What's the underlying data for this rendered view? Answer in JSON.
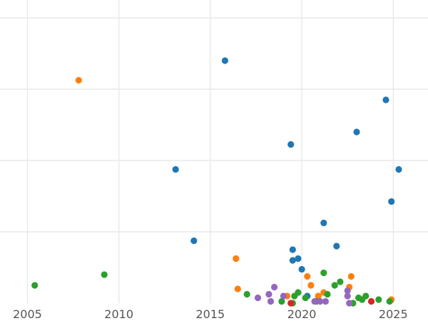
{
  "chart_data": {
    "type": "scatter",
    "title": "",
    "xlabel": "",
    "ylabel": "",
    "xlim": [
      2003.5,
      2026.9
    ],
    "ylim": [
      0,
      8.5
    ],
    "grid": true,
    "x_ticks": [
      2005,
      2010,
      2015,
      2020,
      2025
    ],
    "y_gridlines": [
      2,
      4,
      6,
      8
    ],
    "series": [
      {
        "name": "blue",
        "color": "#1f77b4",
        "x": [
          2015.8,
          2024.6,
          2023.0,
          2019.4,
          2013.1,
          2025.3,
          2024.9,
          2021.2,
          2014.1,
          2021.9,
          2019.5,
          2019.5,
          2019.8,
          2020.0,
          2020.3
        ],
        "y": [
          6.8,
          5.7,
          4.8,
          4.45,
          3.75,
          3.75,
          2.85,
          2.25,
          1.75,
          1.6,
          1.5,
          1.2,
          1.25,
          0.95,
          0.2
        ]
      },
      {
        "name": "orange",
        "color": "#ff7f0e",
        "x": [
          2007.8,
          2016.4,
          2016.5,
          2020.3,
          2020.5,
          2022.7,
          2022.6,
          2020.9,
          2021.2,
          2019.2,
          2024.9
        ],
        "y": [
          6.25,
          1.25,
          0.4,
          0.75,
          0.5,
          0.75,
          0.45,
          0.2,
          0.3,
          0.2,
          0.1
        ]
      },
      {
        "name": "green",
        "color": "#2ca02c",
        "x": [
          2005.4,
          2009.2,
          2017.0,
          2021.2,
          2021.8,
          2022.1,
          2019.8,
          2020.2,
          2021.4,
          2019.6,
          2023.5,
          2024.2,
          2018.9,
          2023.1,
          2022.8,
          2024.8,
          2019.5,
          2020.8,
          2023.3
        ],
        "y": [
          0.5,
          0.8,
          0.25,
          0.85,
          0.5,
          0.6,
          0.3,
          0.15,
          0.25,
          0.2,
          0.2,
          0.1,
          0.05,
          0.15,
          0.0,
          0.05,
          0.0,
          0.05,
          0.1
        ]
      },
      {
        "name": "red",
        "color": "#d62728",
        "x": [
          2019.4,
          2023.8
        ],
        "y": [
          0.0,
          0.05
        ]
      },
      {
        "name": "purple",
        "color": "#9467bd",
        "x": [
          2017.6,
          2018.5,
          2018.2,
          2018.3,
          2019.0,
          2022.5,
          2022.5,
          2020.7,
          2021.0,
          2021.3,
          2022.6
        ],
        "y": [
          0.15,
          0.45,
          0.25,
          0.05,
          0.2,
          0.35,
          0.2,
          0.05,
          0.05,
          0.05,
          0.0
        ]
      }
    ]
  }
}
